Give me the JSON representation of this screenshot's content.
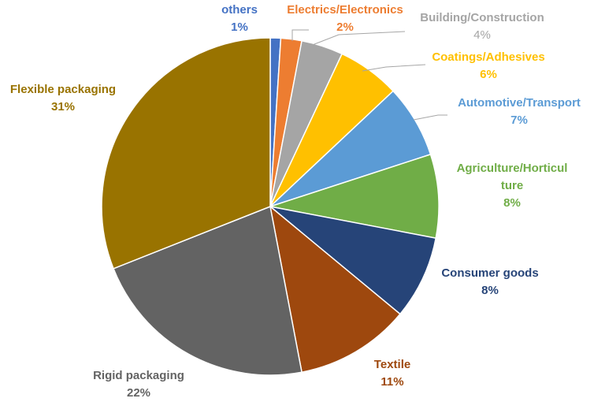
{
  "chart_data": {
    "type": "pie",
    "title": "",
    "start_angle_deg": 0,
    "direction": "clockwise",
    "slices": [
      {
        "label": "others",
        "value": 1,
        "value_label": "1%",
        "color": "#4472C4"
      },
      {
        "label": "Electrics/Electronics",
        "value": 2,
        "value_label": "2%",
        "color": "#ED7D31"
      },
      {
        "label": "Building/Construction",
        "value": 4,
        "value_label": "4%",
        "color": "#A5A5A5"
      },
      {
        "label": "Coatings/Adhesives",
        "value": 6,
        "value_label": "6%",
        "color": "#FFC000"
      },
      {
        "label": "Automotive/Transport",
        "value": 7,
        "value_label": "7%",
        "color": "#5B9BD5"
      },
      {
        "label": "Agriculture/Horticul ture",
        "value": 8,
        "value_label": "8%",
        "color": "#70AD47"
      },
      {
        "label": "Consumer goods",
        "value": 8,
        "value_label": "8%",
        "color": "#264478"
      },
      {
        "label": "Textile",
        "value": 11,
        "value_label": "11%",
        "color": "#9E480E"
      },
      {
        "label": "Rigid packaging",
        "value": 22,
        "value_label": "22%",
        "color": "#636363"
      },
      {
        "label": "Flexible packaging",
        "value": 31,
        "value_label": "31%",
        "color": "#997300"
      }
    ],
    "legend": "none"
  }
}
